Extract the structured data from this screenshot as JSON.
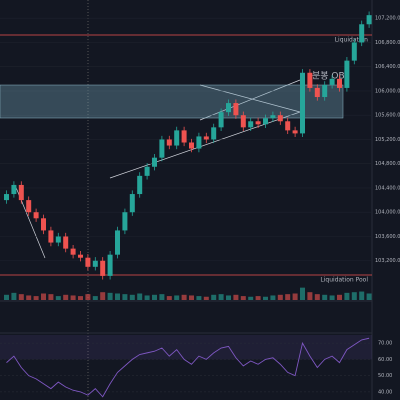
{
  "chart_data": [
    {
      "type": "candlestick",
      "up_color": "#26a69a",
      "down_color": "#ef5350",
      "ylim": [
        102800,
        107500
      ],
      "yticks": [
        {
          "value": 103200,
          "label": "103,200.0"
        },
        {
          "value": 103600,
          "label": "103,600.0"
        },
        {
          "value": 104000,
          "label": "104,000.0"
        },
        {
          "value": 104400,
          "label": "104,400.0"
        },
        {
          "value": 104800,
          "label": "104,800.0"
        },
        {
          "value": 105200,
          "label": "105,200.0"
        },
        {
          "value": 105600,
          "label": "105,600.0"
        },
        {
          "value": 106000,
          "label": "106,000.0"
        },
        {
          "value": 106400,
          "label": "106,400.0"
        },
        {
          "value": 106800,
          "label": "106,800.0"
        },
        {
          "value": 107200,
          "label": "107,200.0"
        }
      ],
      "grid": true,
      "candles": [
        [
          104200,
          104360,
          104140,
          104300
        ],
        [
          104300,
          104510,
          104240,
          104450
        ],
        [
          104450,
          104510,
          104140,
          104200
        ],
        [
          104200,
          104260,
          103940,
          104000
        ],
        [
          104000,
          104060,
          103840,
          103900
        ],
        [
          103900,
          103960,
          103640,
          103700
        ],
        [
          103700,
          103760,
          103440,
          103500
        ],
        [
          103500,
          103660,
          103440,
          103600
        ],
        [
          103600,
          103660,
          103340,
          103400
        ],
        [
          103400,
          103460,
          103240,
          103300
        ],
        [
          103300,
          103360,
          103190,
          103250
        ],
        [
          103250,
          103310,
          103040,
          103100
        ],
        [
          103100,
          103260,
          103040,
          103200
        ],
        [
          103200,
          103260,
          102890,
          102950
        ],
        [
          102950,
          103360,
          102890,
          103300
        ],
        [
          103300,
          103760,
          103240,
          103700
        ],
        [
          103700,
          104060,
          103640,
          104000
        ],
        [
          104000,
          104360,
          103940,
          104300
        ],
        [
          104300,
          104660,
          104240,
          104600
        ],
        [
          104600,
          104810,
          104540,
          104750
        ],
        [
          104750,
          104960,
          104690,
          104900
        ],
        [
          104900,
          105260,
          104840,
          105200
        ],
        [
          105200,
          105260,
          105040,
          105100
        ],
        [
          105100,
          105410,
          105040,
          105350
        ],
        [
          105350,
          105410,
          105090,
          105150
        ],
        [
          105150,
          105210,
          104990,
          105050
        ],
        [
          105050,
          105310,
          104990,
          105250
        ],
        [
          105250,
          105310,
          105140,
          105200
        ],
        [
          105200,
          105460,
          105140,
          105400
        ],
        [
          105400,
          105710,
          105340,
          105650
        ],
        [
          105650,
          105860,
          105590,
          105800
        ],
        [
          105800,
          105860,
          105540,
          105600
        ],
        [
          105600,
          105660,
          105340,
          105400
        ],
        [
          105400,
          105560,
          105340,
          105500
        ],
        [
          105500,
          105560,
          105390,
          105450
        ],
        [
          105450,
          105610,
          105390,
          105550
        ],
        [
          105550,
          105660,
          105490,
          105600
        ],
        [
          105600,
          105660,
          105440,
          105500
        ],
        [
          105500,
          105560,
          105290,
          105350
        ],
        [
          105350,
          105410,
          105240,
          105300
        ],
        [
          105300,
          106360,
          105240,
          106300
        ],
        [
          106300,
          106360,
          105990,
          106050
        ],
        [
          106050,
          106110,
          105840,
          105900
        ],
        [
          105900,
          106160,
          105840,
          106100
        ],
        [
          106100,
          106260,
          106040,
          106200
        ],
        [
          106200,
          106260,
          105990,
          106050
        ],
        [
          106050,
          106560,
          105990,
          106500
        ],
        [
          106500,
          106860,
          106440,
          106800
        ],
        [
          106800,
          107160,
          106740,
          107100
        ],
        [
          107100,
          107310,
          107040,
          107250
        ]
      ],
      "ob_zone": [
        105554,
        106098
      ],
      "ob_label": "분봉 OB",
      "levels": [
        {
          "name": "Liquidation",
          "value": 106923,
          "color": "#ef5350"
        },
        {
          "name": "Liquidation Pool",
          "value": 102965,
          "color": "#ef5350"
        }
      ]
    },
    {
      "type": "bar",
      "ylim": [
        0,
        100
      ],
      "up_color": "#26a69a",
      "down_color": "#ef5350",
      "values": [
        40,
        55,
        45,
        35,
        30,
        50,
        45,
        30,
        40,
        35,
        30,
        45,
        30,
        60,
        55,
        50,
        45,
        40,
        50,
        35,
        40,
        45,
        30,
        35,
        40,
        35,
        30,
        25,
        40,
        45,
        35,
        40,
        30,
        25,
        30,
        25,
        35,
        40,
        45,
        50,
        95,
        60,
        45,
        40,
        35,
        40,
        55,
        60,
        65,
        50
      ]
    },
    {
      "type": "line",
      "color": "#7e57c2",
      "ylim": [
        35,
        75
      ],
      "yticks": [
        {
          "value": 40,
          "label": "40.00"
        },
        {
          "value": 50,
          "label": "50.00"
        },
        {
          "value": 60,
          "label": "60.00"
        },
        {
          "value": 70,
          "label": "70.00"
        }
      ],
      "band": [
        60,
        75
      ],
      "values": [
        58,
        62,
        55,
        50,
        48,
        45,
        42,
        46,
        43,
        41,
        40,
        38,
        42,
        37,
        45,
        52,
        56,
        60,
        63,
        64,
        65,
        67,
        62,
        66,
        60,
        57,
        62,
        60,
        64,
        67,
        68,
        61,
        56,
        59,
        57,
        60,
        61,
        57,
        52,
        50,
        70,
        62,
        55,
        60,
        62,
        58,
        66,
        69,
        72,
        73
      ]
    }
  ]
}
